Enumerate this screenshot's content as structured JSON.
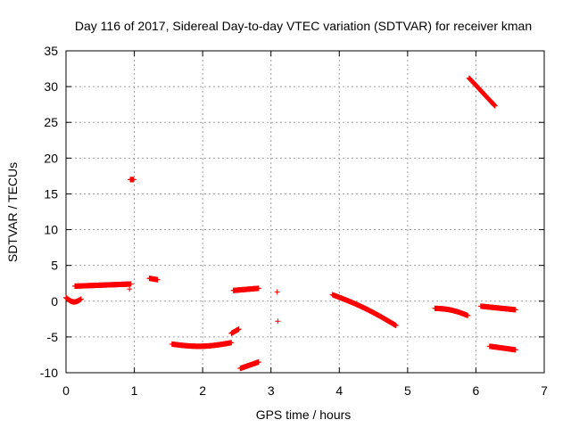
{
  "chart_data": {
    "type": "scatter",
    "title": "Day 116 of 2017, Sidereal Day-to-day VTEC variation (SDTVAR) for receiver kman",
    "xlabel": "GPS time / hours",
    "ylabel": "SDTVAR / TECUs",
    "xlim": [
      0,
      7
    ],
    "ylim": [
      -10,
      35
    ],
    "xticks": [
      "0",
      "1",
      "2",
      "3",
      "4",
      "5",
      "6",
      "7"
    ],
    "yticks": [
      "-10",
      "-5",
      "0",
      "5",
      "10",
      "15",
      "20",
      "25",
      "30",
      "35"
    ],
    "grid": true,
    "marker": "plus",
    "marker_color": "#ff0000",
    "segments": [
      {
        "x0": 0.0,
        "x1": 0.22,
        "y0": 0.5,
        "y1": 0.3,
        "dip": 0.5
      },
      {
        "x0": 0.13,
        "x1": 0.95,
        "y0": 2.1,
        "y1": 2.4
      },
      {
        "x0": 0.94,
        "x1": 0.99,
        "y0": 17.0,
        "y1": 17.0
      },
      {
        "x0": 1.22,
        "x1": 1.34,
        "y0": 3.2,
        "y1": 3.0
      },
      {
        "x0": 1.55,
        "x1": 2.42,
        "y0": -6.0,
        "y1": -5.8,
        "dip": 0.4
      },
      {
        "x0": 2.42,
        "x1": 2.53,
        "y0": -4.5,
        "y1": -3.9
      },
      {
        "x0": 2.45,
        "x1": 2.82,
        "y0": 1.5,
        "y1": 1.8
      },
      {
        "x0": 2.55,
        "x1": 2.82,
        "y0": -9.4,
        "y1": -8.5
      },
      {
        "x0": 3.9,
        "x1": 4.83,
        "y0": 0.9,
        "y1": -3.4,
        "curve": 0.3
      },
      {
        "x0": 5.4,
        "x1": 5.88,
        "y0": -1.0,
        "y1": -2.0,
        "curve": 0.25
      },
      {
        "x0": 5.9,
        "x1": 6.28,
        "y0": 31.2,
        "y1": 27.3
      },
      {
        "x0": 6.07,
        "x1": 6.58,
        "y0": -0.7,
        "y1": -1.2
      },
      {
        "x0": 6.2,
        "x1": 6.58,
        "y0": -6.3,
        "y1": -6.8
      }
    ],
    "points": [
      {
        "x": 0.93,
        "y": 1.7
      },
      {
        "x": 3.09,
        "y": 1.3
      },
      {
        "x": 3.1,
        "y": -2.8
      }
    ]
  }
}
